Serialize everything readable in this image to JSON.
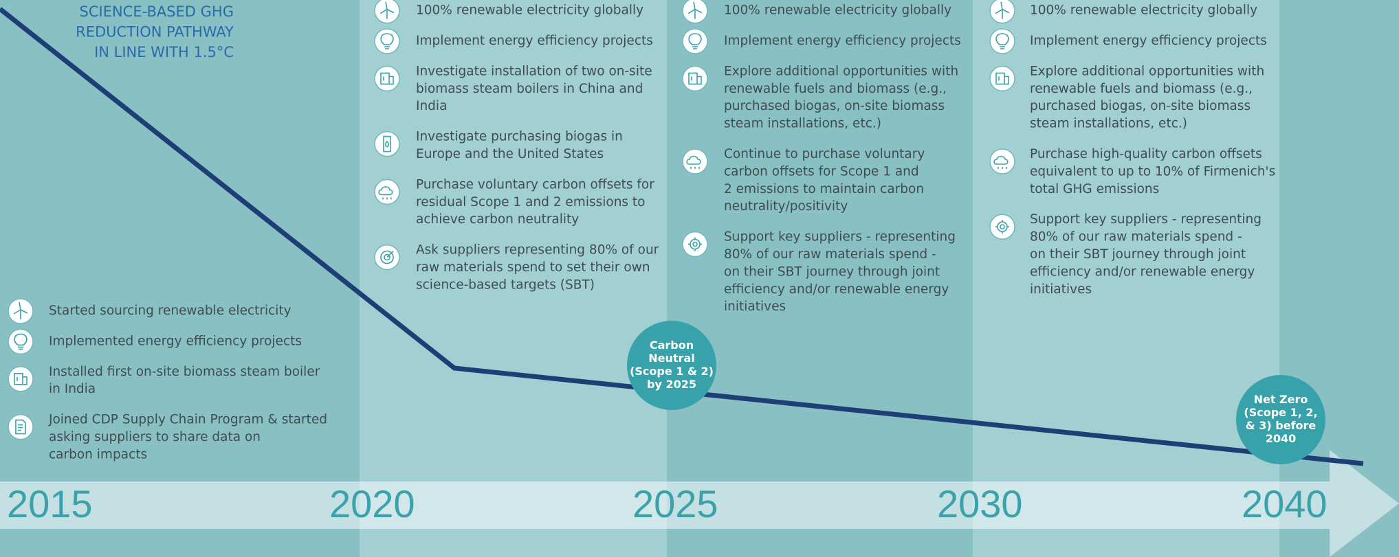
{
  "title": [
    "SCIENCE-BASED GHG",
    "REDUCTION PATHWAY",
    "IN LINE WITH 1.5°C"
  ],
  "years": [
    "2015",
    "2020",
    "2025",
    "2030",
    "2040"
  ],
  "columns": [
    {
      "items": [
        {
          "icon": "wind",
          "lines": [
            "Started sourcing renewable electricity"
          ]
        },
        {
          "icon": "bulb",
          "lines": [
            "Implemented energy efficiency projects"
          ]
        },
        {
          "icon": "boiler",
          "lines": [
            "Installed first on-site biomass steam boiler",
            "in India"
          ]
        },
        {
          "icon": "doc",
          "lines": [
            "Joined CDP Supply Chain Program & started",
            "asking suppliers to share data on",
            "carbon impacts"
          ]
        }
      ]
    },
    {
      "items": [
        {
          "icon": "wind",
          "lines": [
            "100% renewable electricity globally"
          ]
        },
        {
          "icon": "bulb",
          "lines": [
            "Implement energy efficiency projects"
          ]
        },
        {
          "icon": "boiler",
          "lines": [
            "Investigate installation of two on-site",
            "biomass steam boilers in China and",
            "India"
          ]
        },
        {
          "icon": "gas",
          "lines": [
            "Investigate purchasing biogas in",
            "Europe and the United States"
          ]
        },
        {
          "icon": "cloud",
          "lines": [
            "Purchase voluntary carbon offsets for",
            "residual Scope 1 and 2 emissions to",
            "achieve carbon neutrality"
          ]
        },
        {
          "icon": "target",
          "lines": [
            "Ask suppliers representing 80% of our",
            "raw materials spend to set their own",
            "science-based targets (SBT)"
          ]
        }
      ]
    },
    {
      "items": [
        {
          "icon": "wind",
          "lines": [
            "100% renewable electricity globally"
          ]
        },
        {
          "icon": "bulb",
          "lines": [
            "Implement energy efficiency projects"
          ]
        },
        {
          "icon": "boiler",
          "lines": [
            "Explore additional opportunities with",
            "renewable fuels and biomass (e.g.,",
            "purchased biogas, on-site biomass",
            "steam installations, etc.)"
          ]
        },
        {
          "icon": "cloud",
          "lines": [
            "Continue to purchase voluntary",
            "carbon offsets for Scope 1 and",
            "2 emissions to maintain carbon",
            "neutrality/positivity"
          ]
        },
        {
          "icon": "gear",
          "lines": [
            "Support key suppliers - representing",
            "80% of our raw materials spend -",
            "on their SBT journey through joint",
            "efficiency and/or renewable energy",
            "initiatives"
          ]
        }
      ]
    },
    {
      "items": [
        {
          "icon": "wind",
          "lines": [
            "100% renewable electricity globally"
          ]
        },
        {
          "icon": "bulb",
          "lines": [
            "Implement energy efficiency projects"
          ]
        },
        {
          "icon": "boiler",
          "lines": [
            "Explore additional opportunities with",
            "renewable fuels and biomass (e.g.,",
            "purchased biogas, on-site biomass",
            "steam installations, etc.)"
          ]
        },
        {
          "icon": "cloud",
          "lines": [
            "Purchase high-quality carbon offsets",
            "equivalent to up to 10% of Firmenich's",
            "total GHG emissions"
          ]
        },
        {
          "icon": "gear",
          "lines": [
            "Support key suppliers - representing",
            "80% of our raw materials spend -",
            "on their SBT journey through joint",
            "efficiency and/or renewable energy",
            "initiatives"
          ]
        }
      ]
    }
  ],
  "milestones": [
    {
      "lines": [
        "Carbon",
        "Neutral",
        "(Scope 1 & 2)",
        "by 2025"
      ]
    },
    {
      "lines": [
        "Net Zero",
        "(Scope 1, 2,",
        "& 3) before",
        "2040"
      ]
    }
  ]
}
